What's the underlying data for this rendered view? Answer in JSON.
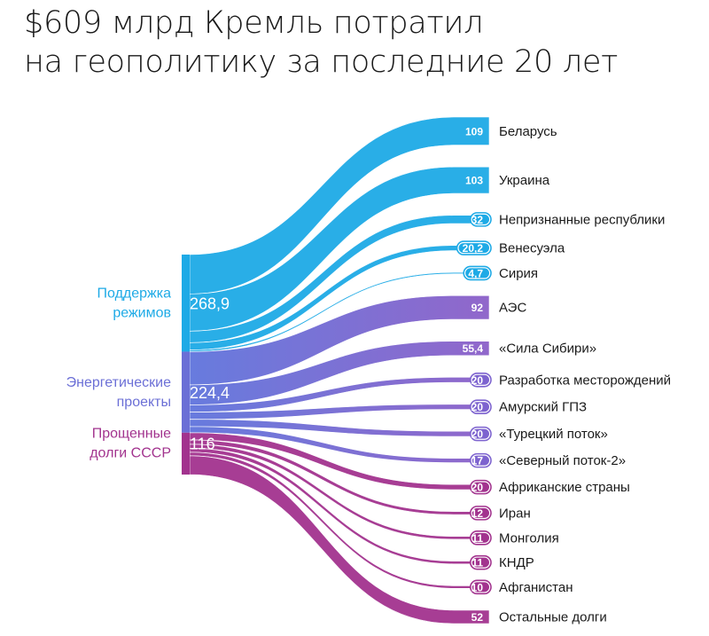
{
  "title": {
    "line1": "$609 млрд Кремль потратил",
    "line2": "на геополитику за последние 20 лет"
  },
  "chart_data": {
    "type": "sankey",
    "title": "$609 млрд Кремль потратил на геополитику за последние 20 лет",
    "sources": [
      {
        "id": "support",
        "label_lines": [
          "Поддержка",
          "режимов"
        ],
        "value_label": "268,9",
        "value": 268.9,
        "color": "#1eaae6"
      },
      {
        "id": "energy",
        "label_lines": [
          "Энергетические",
          "проекты"
        ],
        "value_label": "224,4",
        "value": 224.4,
        "color": "#6b6fd6"
      },
      {
        "id": "debts",
        "label_lines": [
          "Прощенные",
          "долги СССР"
        ],
        "value_label": "116",
        "value": 116,
        "color": "#a2338e"
      }
    ],
    "targets": [
      {
        "name": "Беларусь",
        "value_label": "109",
        "value": 109,
        "source": "support"
      },
      {
        "name": "Украина",
        "value_label": "103",
        "value": 103,
        "source": "support"
      },
      {
        "name": "Непризнанные республики",
        "value_label": "32",
        "value": 32,
        "source": "support"
      },
      {
        "name": "Венесуэла",
        "value_label": "20,2",
        "value": 20.2,
        "source": "support"
      },
      {
        "name": "Сирия",
        "value_label": "4,7",
        "value": 4.7,
        "source": "support"
      },
      {
        "name": "АЭС",
        "value_label": "92",
        "value": 92,
        "source": "energy"
      },
      {
        "name": "«Сила Сибири»",
        "value_label": "55,4",
        "value": 55.4,
        "source": "energy"
      },
      {
        "name": "Разработка месторождений",
        "value_label": "20",
        "value": 20,
        "source": "energy"
      },
      {
        "name": "Амурский ГПЗ",
        "value_label": "20",
        "value": 20,
        "source": "energy"
      },
      {
        "name": "«Турецкий поток»",
        "value_label": "20",
        "value": 20,
        "source": "energy"
      },
      {
        "name": "«Северный поток-2»",
        "value_label": "17",
        "value": 17,
        "source": "energy"
      },
      {
        "name": "Африканские страны",
        "value_label": "20",
        "value": 20,
        "source": "debts"
      },
      {
        "name": "Иран",
        "value_label": "12",
        "value": 12,
        "source": "debts"
      },
      {
        "name": "Монголия",
        "value_label": "11",
        "value": 11,
        "source": "debts"
      },
      {
        "name": "КНДР",
        "value_label": "11",
        "value": 11,
        "source": "debts"
      },
      {
        "name": "Афганистан",
        "value_label": "10",
        "value": 10,
        "source": "debts"
      },
      {
        "name": "Остальные долги",
        "value_label": "52",
        "value": 52,
        "source": "debts"
      }
    ]
  }
}
